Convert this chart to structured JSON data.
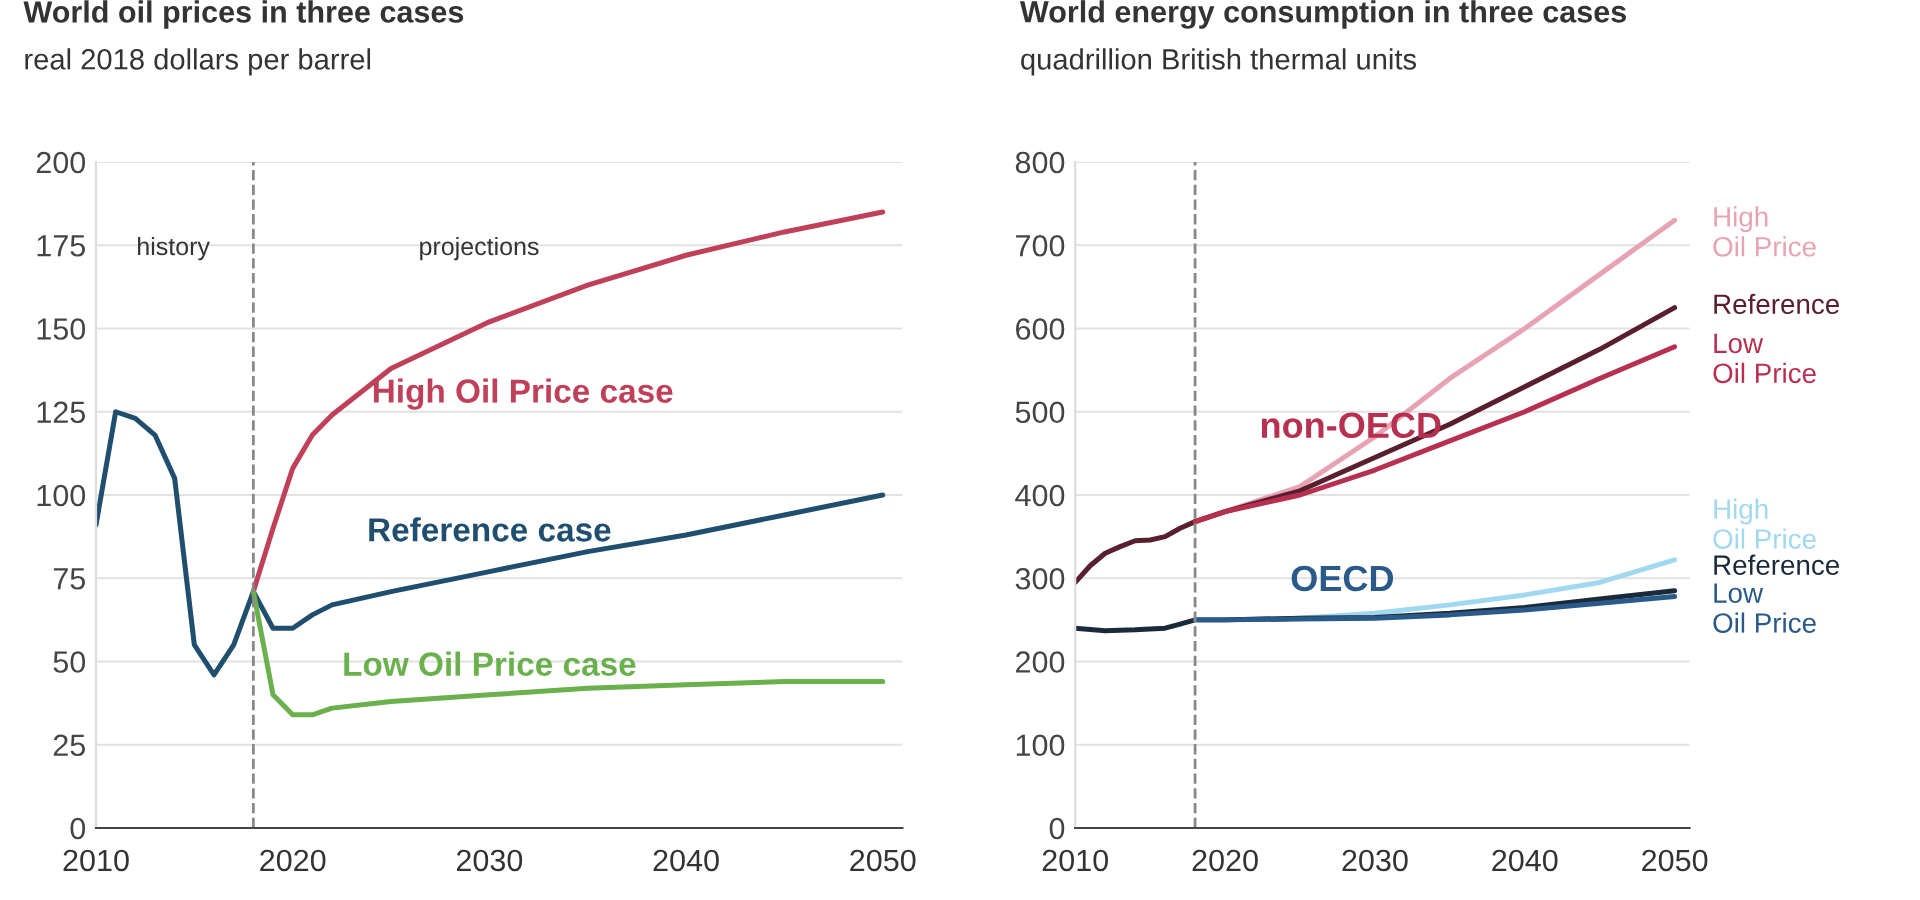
{
  "chart_data": [
    {
      "type": "line",
      "title": "World oil prices in three cases",
      "subtitle": "real 2018 dollars per barrel",
      "xlim": [
        2010,
        2051
      ],
      "xticks": [
        2010,
        2020,
        2030,
        2040,
        2050
      ],
      "ylim": [
        0,
        200
      ],
      "yticks": [
        0,
        25,
        50,
        75,
        100,
        125,
        150,
        175,
        200
      ],
      "grid": "y",
      "ref_lines": [
        {
          "axis": "x",
          "value": 2018,
          "color": "#888888",
          "line_style": "dashed"
        }
      ],
      "annotations": [
        "history",
        "projections"
      ],
      "series": [
        {
          "name": "Reference case",
          "color": "#1f4e6e",
          "x": [
            2010,
            2011,
            2012,
            2013,
            2014,
            2015,
            2016,
            2017,
            2018,
            2019,
            2020,
            2021,
            2022,
            2025,
            2030,
            2035,
            2040,
            2045,
            2050
          ],
          "values": [
            91,
            125,
            123,
            118,
            105,
            55,
            46,
            55,
            71,
            60,
            60,
            64,
            67,
            71,
            77,
            83,
            88,
            94,
            100
          ]
        },
        {
          "name": "High Oil Price case",
          "color": "#c0405a",
          "x": [
            2018,
            2019,
            2020,
            2021,
            2022,
            2025,
            2030,
            2035,
            2040,
            2045,
            2050
          ],
          "values": [
            71,
            90,
            108,
            118,
            124,
            138,
            152,
            163,
            172,
            179,
            185
          ]
        },
        {
          "name": "Low Oil Price case",
          "color": "#6ab04c",
          "x": [
            2018,
            2019,
            2020,
            2021,
            2022,
            2025,
            2030,
            2035,
            2040,
            2045,
            2050
          ],
          "values": [
            71,
            40,
            34,
            34,
            36,
            38,
            40,
            42,
            43,
            44,
            44
          ]
        }
      ]
    },
    {
      "type": "line",
      "title": "World energy consumption in three cases",
      "subtitle": "quadrillion British thermal units",
      "xlim": [
        2010,
        2051
      ],
      "xticks": [
        2010,
        2020,
        2030,
        2040,
        2050
      ],
      "ylim": [
        0,
        800
      ],
      "yticks": [
        0,
        100,
        200,
        300,
        400,
        500,
        600,
        700,
        800
      ],
      "grid": "y",
      "ref_lines": [
        {
          "axis": "x",
          "value": 2018,
          "color": "#888888",
          "line_style": "dashed"
        }
      ],
      "annotations": [
        "non-OECD",
        "OECD"
      ],
      "series": [
        {
          "name": "High\nOil Price",
          "color": "#e8a3b3",
          "x": [
            2018,
            2020,
            2025,
            2030,
            2035,
            2040,
            2045,
            2050
          ],
          "values": [
            368,
            380,
            410,
            470,
            540,
            600,
            665,
            730
          ]
        },
        {
          "name": "Reference",
          "color": "#5a1f2e",
          "x": [
            2010,
            2011,
            2012,
            2013,
            2014,
            2015,
            2016,
            2017,
            2018,
            2020,
            2025,
            2030,
            2035,
            2040,
            2045,
            2050
          ],
          "values": [
            295,
            315,
            330,
            338,
            345,
            346,
            350,
            360,
            368,
            380,
            405,
            445,
            485,
            530,
            575,
            625
          ]
        },
        {
          "name": "Low\nOil Price",
          "color": "#b83050",
          "x": [
            2018,
            2020,
            2025,
            2030,
            2035,
            2040,
            2045,
            2050
          ],
          "values": [
            368,
            380,
            400,
            430,
            465,
            500,
            540,
            578
          ]
        },
        {
          "name": "High\nOil Price",
          "color": "#a0d8f0",
          "x": [
            2018,
            2020,
            2025,
            2030,
            2035,
            2040,
            2045,
            2050
          ],
          "values": [
            250,
            250,
            252,
            258,
            268,
            280,
            295,
            322
          ]
        },
        {
          "name": "Reference",
          "color": "#1a2a3a",
          "x": [
            2010,
            2012,
            2014,
            2016,
            2017,
            2018,
            2020,
            2025,
            2030,
            2035,
            2040,
            2045,
            2050
          ],
          "values": [
            240,
            237,
            238,
            240,
            245,
            250,
            250,
            252,
            253,
            258,
            265,
            275,
            285
          ]
        },
        {
          "name": "Low\nOil Price",
          "color": "#2a5a8a",
          "x": [
            2018,
            2020,
            2025,
            2030,
            2035,
            2040,
            2045,
            2050
          ],
          "values": [
            250,
            250,
            251,
            252,
            256,
            262,
            270,
            278
          ]
        }
      ]
    }
  ]
}
